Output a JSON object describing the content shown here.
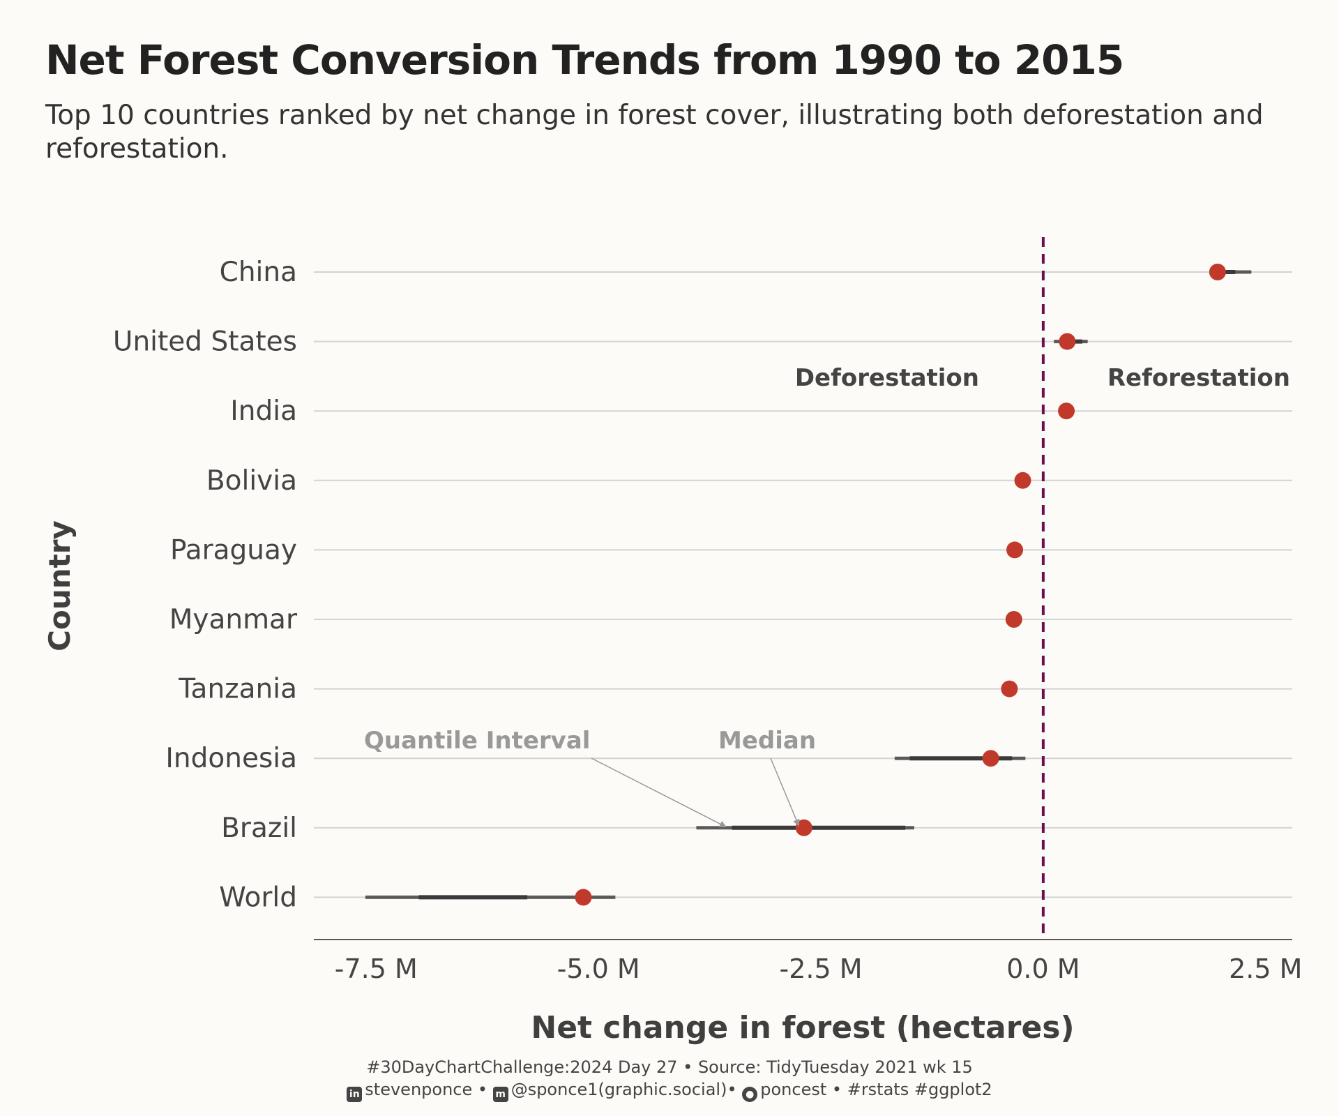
{
  "title": "Net Forest Conversion Trends from 1990 to 2015",
  "subtitle": "Top 10 countries ranked by net change in  forest cover, illustrating both deforestation and reforestation.",
  "caption": {
    "line1": "#30DayChartChallenge:2024 Day 27 • Source: TidyTuesday 2021 wk 15",
    "linkedin": "stevenponce",
    "mastodon": "@sponce1(graphic.social)",
    "github": "poncest",
    "tags": "#rstats #ggplot2",
    "sep": "•",
    "icons": [
      "linkedin-icon",
      "mastodon-icon",
      "github-icon"
    ]
  },
  "colors": {
    "background": "#FDFBF7",
    "point": "#C0392B",
    "interval": "#3A3A3A",
    "zero_line": "#6B0F4E",
    "grid": "#D3D3D3",
    "annotation": "#999999"
  },
  "chart_data": {
    "type": "scatter",
    "xlabel": "Net change in forest (hectares)",
    "ylabel": "Country",
    "xlim": [
      -8.2,
      2.8
    ],
    "x_ticks": [
      -7.5,
      -5.0,
      -2.5,
      0.0,
      2.5
    ],
    "x_tick_labels": [
      "-7.5 M",
      "-5.0 M",
      "-2.5 M",
      "0.0 M",
      "2.5 M"
    ],
    "reference_line": 0.0,
    "categories": [
      "China",
      "United States",
      "India",
      "Bolivia",
      "Paraguay",
      "Myanmar",
      "Tanzania",
      "Indonesia",
      "Brazil",
      "World"
    ],
    "series": [
      {
        "name": "Median",
        "values": [
          1.96,
          0.27,
          0.26,
          -0.23,
          -0.32,
          -0.33,
          -0.38,
          -0.59,
          -2.69,
          -5.17
        ]
      }
    ],
    "interval_outer": [
      [
        1.97,
        2.34
      ],
      [
        0.12,
        0.5
      ],
      [
        0.24,
        0.27
      ],
      [
        -0.24,
        -0.22
      ],
      [
        -0.33,
        -0.3
      ],
      [
        -0.42,
        -0.26
      ],
      [
        -0.39,
        -0.37
      ],
      [
        -1.67,
        -0.2
      ],
      [
        -3.9,
        -1.45
      ],
      [
        -7.62,
        -4.81
      ]
    ],
    "interval_inner": [
      [
        1.97,
        2.16
      ],
      [
        0.2,
        0.44
      ],
      [
        0.25,
        0.27
      ],
      [
        -0.24,
        -0.22
      ],
      [
        -0.33,
        -0.31
      ],
      [
        -0.38,
        -0.28
      ],
      [
        -0.39,
        -0.37
      ],
      [
        -1.5,
        -0.35
      ],
      [
        -3.5,
        -1.55
      ],
      [
        -7.02,
        -5.8
      ]
    ],
    "annotations": {
      "deforestation": "Deforestation",
      "reforestation": "Reforestation",
      "quantile_interval": "Quantile Interval",
      "median": "Median"
    },
    "grid": true,
    "legend": "none"
  }
}
